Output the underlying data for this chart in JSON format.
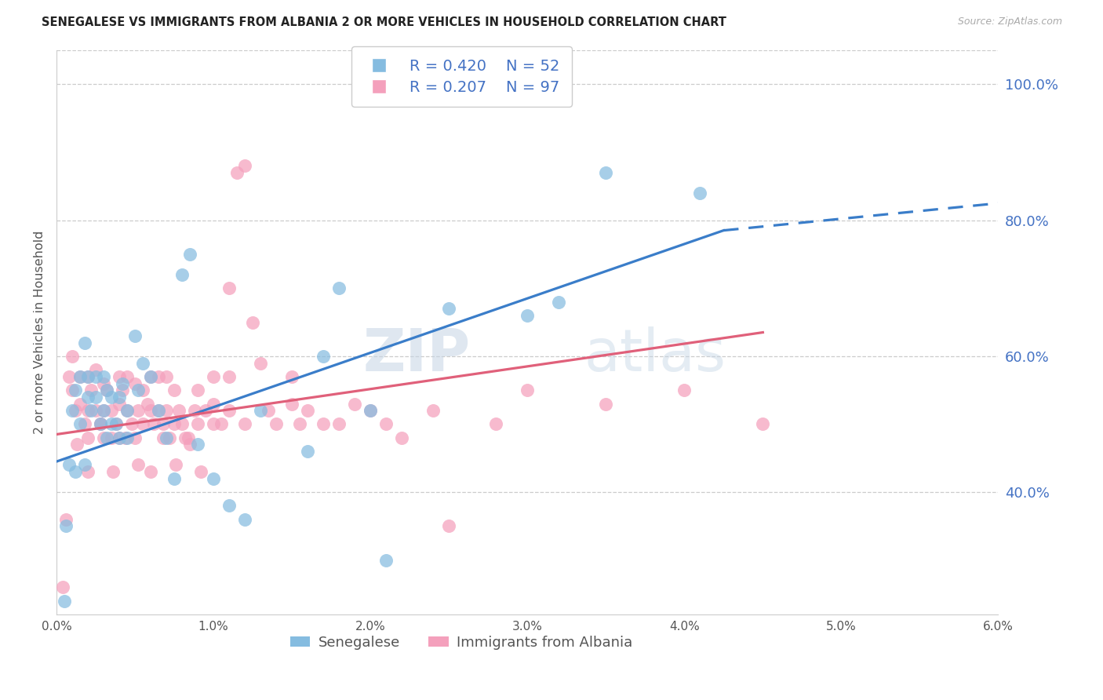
{
  "title": "SENEGALESE VS IMMIGRANTS FROM ALBANIA 2 OR MORE VEHICLES IN HOUSEHOLD CORRELATION CHART",
  "source": "Source: ZipAtlas.com",
  "ylabel": "2 or more Vehicles in Household",
  "xlim": [
    0.0,
    6.0
  ],
  "ylim": [
    22.0,
    105.0
  ],
  "right_yticks": [
    40.0,
    60.0,
    80.0,
    100.0
  ],
  "legend_r1": "R = 0.420",
  "legend_n1": "N = 52",
  "legend_r2": "R = 0.207",
  "legend_n2": "N = 97",
  "legend_label1": "Senegalese",
  "legend_label2": "Immigrants from Albania",
  "blue_color": "#85bce0",
  "pink_color": "#f4a0bc",
  "blue_line_color": "#3a7dc9",
  "pink_line_color": "#e0607a",
  "watermark_top": "ZIP",
  "watermark_bot": "atlas",
  "blue_trend_x0": 0.0,
  "blue_trend_y0": 44.5,
  "blue_trend_x1": 4.25,
  "blue_trend_y1": 78.5,
  "blue_dash_x0": 4.25,
  "blue_dash_y0": 78.5,
  "blue_dash_x1": 6.0,
  "blue_dash_y1": 82.5,
  "pink_trend_x0": 0.0,
  "pink_trend_y0": 48.5,
  "pink_trend_x1": 4.5,
  "pink_trend_y1": 63.5,
  "blue_scatter_x": [
    0.05,
    0.08,
    0.1,
    0.12,
    0.15,
    0.15,
    0.18,
    0.2,
    0.2,
    0.22,
    0.25,
    0.25,
    0.28,
    0.3,
    0.3,
    0.32,
    0.32,
    0.35,
    0.35,
    0.38,
    0.4,
    0.4,
    0.42,
    0.45,
    0.45,
    0.5,
    0.52,
    0.55,
    0.6,
    0.65,
    0.7,
    0.75,
    0.8,
    0.85,
    0.9,
    1.0,
    1.1,
    1.2,
    1.3,
    1.6,
    1.7,
    1.8,
    2.0,
    2.1,
    2.5,
    3.0,
    3.2,
    3.5,
    4.1,
    0.06,
    0.12,
    0.18
  ],
  "blue_scatter_y": [
    24.0,
    44.0,
    52.0,
    55.0,
    57.0,
    50.0,
    62.0,
    57.0,
    54.0,
    52.0,
    57.0,
    54.0,
    50.0,
    57.0,
    52.0,
    55.0,
    48.0,
    50.0,
    54.0,
    50.0,
    54.0,
    48.0,
    56.0,
    48.0,
    52.0,
    63.0,
    55.0,
    59.0,
    57.0,
    52.0,
    48.0,
    42.0,
    72.0,
    75.0,
    47.0,
    42.0,
    38.0,
    36.0,
    52.0,
    46.0,
    60.0,
    70.0,
    52.0,
    30.0,
    67.0,
    66.0,
    68.0,
    87.0,
    84.0,
    35.0,
    43.0,
    44.0
  ],
  "pink_scatter_x": [
    0.04,
    0.08,
    0.1,
    0.1,
    0.12,
    0.15,
    0.15,
    0.18,
    0.2,
    0.2,
    0.2,
    0.22,
    0.25,
    0.25,
    0.28,
    0.3,
    0.3,
    0.3,
    0.32,
    0.35,
    0.35,
    0.38,
    0.4,
    0.4,
    0.4,
    0.42,
    0.45,
    0.45,
    0.48,
    0.5,
    0.5,
    0.52,
    0.55,
    0.55,
    0.58,
    0.6,
    0.6,
    0.62,
    0.65,
    0.65,
    0.68,
    0.7,
    0.7,
    0.72,
    0.75,
    0.75,
    0.78,
    0.8,
    0.82,
    0.85,
    0.88,
    0.9,
    0.9,
    0.95,
    1.0,
    1.0,
    1.05,
    1.1,
    1.1,
    1.15,
    1.2,
    1.2,
    1.3,
    1.35,
    1.4,
    1.5,
    1.5,
    1.55,
    1.6,
    1.7,
    1.8,
    1.9,
    2.0,
    2.1,
    2.2,
    2.4,
    2.5,
    2.8,
    3.0,
    3.5,
    4.0,
    4.5,
    0.06,
    0.13,
    0.2,
    0.28,
    0.36,
    0.44,
    0.52,
    0.6,
    0.68,
    0.76,
    0.84,
    0.92,
    1.0,
    1.1,
    1.25
  ],
  "pink_scatter_y": [
    26.0,
    57.0,
    60.0,
    55.0,
    52.0,
    57.0,
    53.0,
    50.0,
    57.0,
    52.0,
    48.0,
    55.0,
    58.0,
    52.0,
    50.0,
    56.0,
    52.0,
    48.0,
    55.0,
    52.0,
    48.0,
    50.0,
    57.0,
    53.0,
    48.0,
    55.0,
    57.0,
    52.0,
    50.0,
    56.0,
    48.0,
    52.0,
    55.0,
    50.0,
    53.0,
    52.0,
    57.0,
    50.0,
    57.0,
    52.0,
    50.0,
    57.0,
    52.0,
    48.0,
    55.0,
    50.0,
    52.0,
    50.0,
    48.0,
    47.0,
    52.0,
    55.0,
    50.0,
    52.0,
    53.0,
    57.0,
    50.0,
    57.0,
    52.0,
    87.0,
    88.0,
    50.0,
    59.0,
    52.0,
    50.0,
    53.0,
    57.0,
    50.0,
    52.0,
    50.0,
    50.0,
    53.0,
    52.0,
    50.0,
    48.0,
    52.0,
    35.0,
    50.0,
    55.0,
    53.0,
    55.0,
    50.0,
    36.0,
    47.0,
    43.0,
    50.0,
    43.0,
    48.0,
    44.0,
    43.0,
    48.0,
    44.0,
    48.0,
    43.0,
    50.0,
    70.0,
    65.0
  ]
}
